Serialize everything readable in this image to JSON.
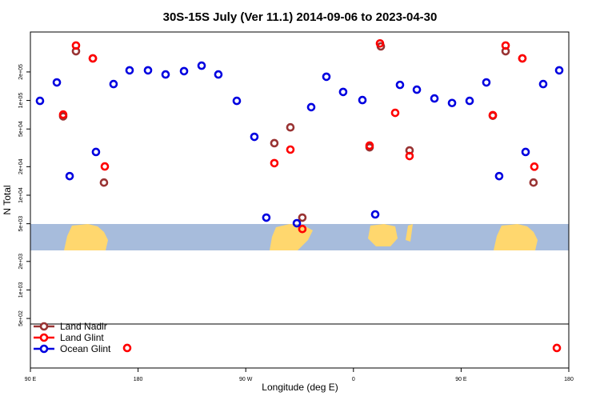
{
  "chart_data": {
    "type": "scatter",
    "title": "30S-15S July (Ver 11.1)   2014-09-06 to 2023-04-30",
    "x_label": "Longitude (deg E)",
    "y_label": "N Total",
    "log_y": true,
    "legend": "bottom left",
    "xlim": [
      90,
      540
    ],
    "xticks": [
      {
        "value": 90,
        "label": "90 E"
      },
      {
        "value": 180,
        "label": "180"
      },
      {
        "value": 270,
        "label": "90 W"
      },
      {
        "value": 360,
        "label": "0"
      },
      {
        "value": 450,
        "label": "90 E"
      },
      {
        "value": 540,
        "label": "180"
      }
    ],
    "ylim": [
      150,
      528000
    ],
    "yticks": [
      {
        "value": 500,
        "label": "5e+02"
      },
      {
        "value": 1000,
        "label": "1e+03"
      },
      {
        "value": 2000,
        "label": "2e+03"
      },
      {
        "value": 5000,
        "label": "5e+03"
      },
      {
        "value": 10000,
        "label": "1e+04"
      },
      {
        "value": 20000,
        "label": "2e+04"
      },
      {
        "value": 50000,
        "label": "5e+04"
      },
      {
        "value": 100000,
        "label": "1e+05"
      },
      {
        "value": 200000,
        "label": "2e+05"
      }
    ],
    "series": [
      {
        "name": "Land Nadir",
        "color": "#993333",
        "x": [
          117.4,
          128.1,
          142.2,
          151.5,
          293.9,
          307.3,
          317.3,
          373.5,
          382.9,
          406.9,
          476.5,
          487.2,
          501.2,
          510.5
        ],
        "values": [
          68000,
          331000,
          278000,
          13600,
          35400,
          52000,
          5800,
          32000,
          372000,
          29700,
          69000,
          331000,
          278000,
          13600
        ]
      },
      {
        "name": "Land Glint",
        "color": "#ff0000",
        "x": [
          117.4,
          128.1,
          142.2,
          152.2,
          170.9,
          293.9,
          307.3,
          317.3,
          373.5,
          382.2,
          394.9,
          406.9,
          476.5,
          487.2,
          501.2,
          511.2,
          530.0
        ],
        "values": [
          71000,
          380000,
          278000,
          20100,
          244,
          21800,
          30300,
          4400,
          33400,
          400000,
          74000,
          25900,
          70000,
          380000,
          278000,
          20000,
          244
        ]
      },
      {
        "name": "Ocean Glint",
        "color": "#0000e0",
        "x": [
          98.0,
          112.1,
          122.8,
          144.8,
          159.5,
          172.9,
          188.3,
          203.0,
          218.4,
          233.1,
          247.1,
          262.5,
          277.2,
          287.2,
          312.7,
          324.7,
          337.4,
          351.4,
          367.5,
          378.2,
          398.9,
          413.0,
          427.7,
          442.4,
          457.1,
          471.1,
          481.8,
          503.9,
          518.6,
          532.0
        ],
        "values": [
          99000,
          155000,
          15900,
          28600,
          149000,
          208000,
          208000,
          188000,
          204000,
          233000,
          188000,
          99000,
          41300,
          5800,
          5060,
          85000,
          178000,
          123000,
          101000,
          6270,
          146000,
          130000,
          105000,
          94000,
          99000,
          155000,
          15900,
          28600,
          149000,
          208000
        ]
      }
    ]
  }
}
